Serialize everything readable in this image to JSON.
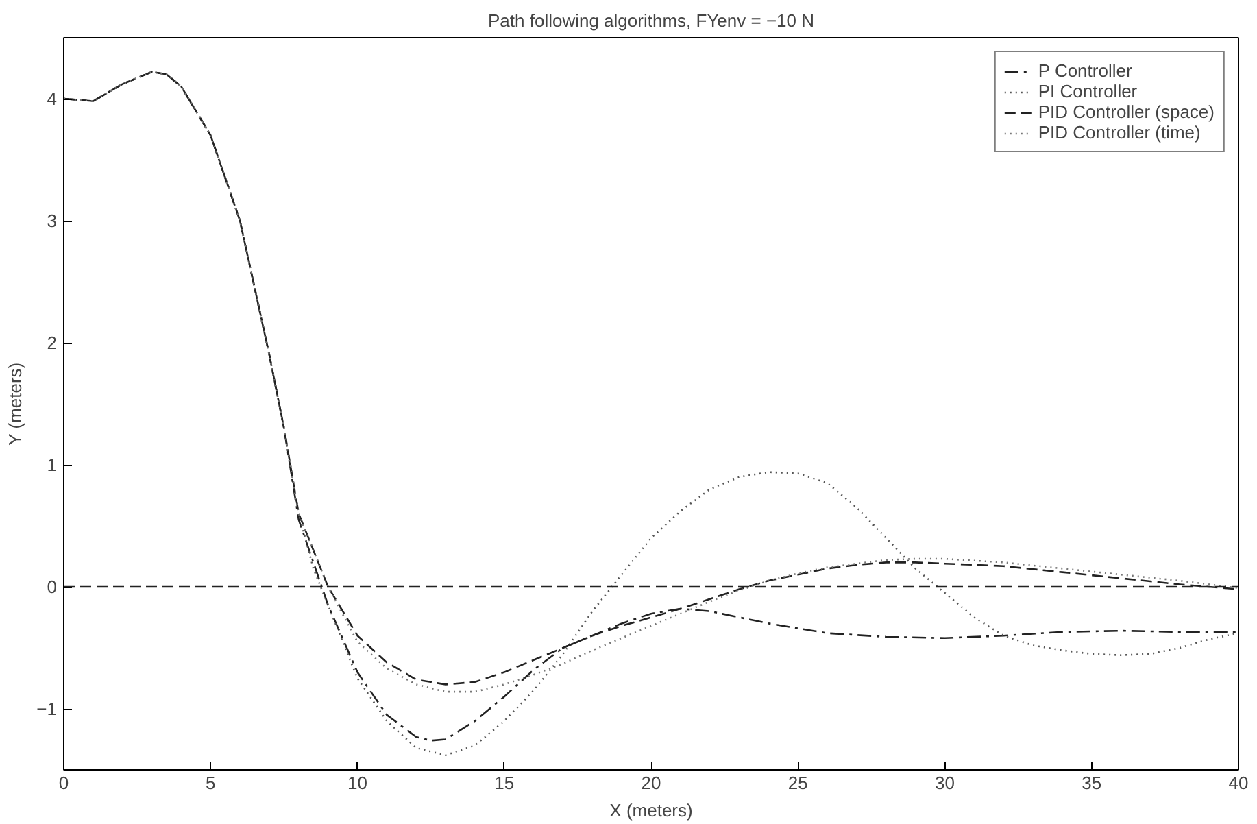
{
  "chart_data": {
    "type": "line",
    "title": "Path following algorithms, FYenv = −10 N",
    "xlabel": "X (meters)",
    "ylabel": "Y (meters)",
    "xlim": [
      0,
      40
    ],
    "ylim": [
      -1.5,
      4.5
    ],
    "xticks": [
      0,
      5,
      10,
      15,
      20,
      25,
      30,
      35,
      40
    ],
    "yticks": [
      -1,
      0,
      1,
      2,
      3,
      4
    ],
    "grid": false,
    "legend": "top right",
    "ref_lines": [
      {
        "axis": "y",
        "value": 0,
        "label": null,
        "color": "#222222",
        "line_style": "dashed"
      }
    ],
    "series": [
      {
        "name": "P Controller",
        "color": "#222222",
        "line_style": "dashdot",
        "x": [
          0,
          1,
          2,
          3,
          3.5,
          4,
          5,
          6,
          7,
          7.5,
          8,
          8.5,
          9,
          10,
          11,
          12,
          12.5,
          13,
          14,
          15,
          16,
          17,
          18,
          19,
          20,
          21,
          22,
          24,
          26,
          28,
          30,
          32,
          34,
          36,
          38,
          40
        ],
        "values": [
          4.0,
          3.98,
          4.12,
          4.22,
          4.2,
          4.1,
          3.7,
          3.0,
          1.9,
          1.3,
          0.55,
          0.2,
          -0.15,
          -0.7,
          -1.05,
          -1.23,
          -1.26,
          -1.25,
          -1.1,
          -0.9,
          -0.68,
          -0.5,
          -0.4,
          -0.3,
          -0.22,
          -0.18,
          -0.2,
          -0.3,
          -0.38,
          -0.41,
          -0.42,
          -0.4,
          -0.37,
          -0.36,
          -0.37,
          -0.37
        ]
      },
      {
        "name": "PI Controller",
        "color": "#555555",
        "line_style": "dotted",
        "x": [
          0,
          1,
          2,
          3,
          3.5,
          4,
          5,
          6,
          7,
          7.5,
          8,
          8.5,
          9,
          10,
          11,
          12,
          13,
          14,
          15,
          16,
          17,
          18,
          19,
          20,
          21,
          22,
          23,
          24,
          25,
          26,
          27,
          28,
          29,
          30,
          31,
          32,
          33,
          34,
          35,
          36,
          37,
          38,
          39,
          40
        ],
        "values": [
          4.0,
          3.98,
          4.12,
          4.22,
          4.2,
          4.1,
          3.7,
          3.0,
          1.9,
          1.3,
          0.6,
          0.15,
          -0.15,
          -0.75,
          -1.1,
          -1.32,
          -1.38,
          -1.3,
          -1.1,
          -0.85,
          -0.55,
          -0.2,
          0.1,
          0.4,
          0.62,
          0.8,
          0.9,
          0.94,
          0.93,
          0.85,
          0.65,
          0.4,
          0.15,
          -0.05,
          -0.25,
          -0.4,
          -0.48,
          -0.52,
          -0.55,
          -0.56,
          -0.55,
          -0.5,
          -0.43,
          -0.38
        ]
      },
      {
        "name": "PID Controller (space)",
        "color": "#222222",
        "line_style": "dashed",
        "x": [
          0,
          1,
          2,
          3,
          3.5,
          4,
          5,
          6,
          7,
          7.5,
          8,
          9,
          10,
          11,
          12,
          13,
          14,
          15,
          16,
          17,
          18,
          19,
          20,
          21,
          22,
          23,
          24,
          25,
          26,
          27,
          28,
          29,
          30,
          32,
          34,
          36,
          38,
          40
        ],
        "values": [
          4.0,
          3.98,
          4.12,
          4.22,
          4.2,
          4.1,
          3.7,
          3.0,
          1.9,
          1.3,
          0.6,
          0.0,
          -0.4,
          -0.62,
          -0.76,
          -0.8,
          -0.78,
          -0.7,
          -0.6,
          -0.5,
          -0.4,
          -0.32,
          -0.25,
          -0.18,
          -0.1,
          -0.02,
          0.05,
          0.1,
          0.15,
          0.18,
          0.2,
          0.2,
          0.19,
          0.17,
          0.12,
          0.07,
          0.02,
          -0.02
        ]
      },
      {
        "name": "PID Controller (time)",
        "color": "#777777",
        "line_style": "dotted",
        "x": [
          0,
          1,
          2,
          3,
          3.5,
          4,
          5,
          6,
          7,
          7.5,
          8,
          9,
          10,
          11,
          12,
          13,
          14,
          15,
          16,
          17,
          18,
          19,
          20,
          21,
          22,
          23,
          24,
          25,
          26,
          27,
          28,
          29,
          30,
          32,
          34,
          36,
          38,
          40
        ],
        "values": [
          4.0,
          3.98,
          4.12,
          4.22,
          4.2,
          4.1,
          3.7,
          3.0,
          1.9,
          1.3,
          0.6,
          0.0,
          -0.45,
          -0.67,
          -0.8,
          -0.86,
          -0.86,
          -0.8,
          -0.72,
          -0.63,
          -0.52,
          -0.42,
          -0.32,
          -0.22,
          -0.12,
          -0.03,
          0.05,
          0.11,
          0.16,
          0.19,
          0.22,
          0.23,
          0.23,
          0.2,
          0.15,
          0.1,
          0.05,
          -0.01
        ]
      }
    ]
  }
}
